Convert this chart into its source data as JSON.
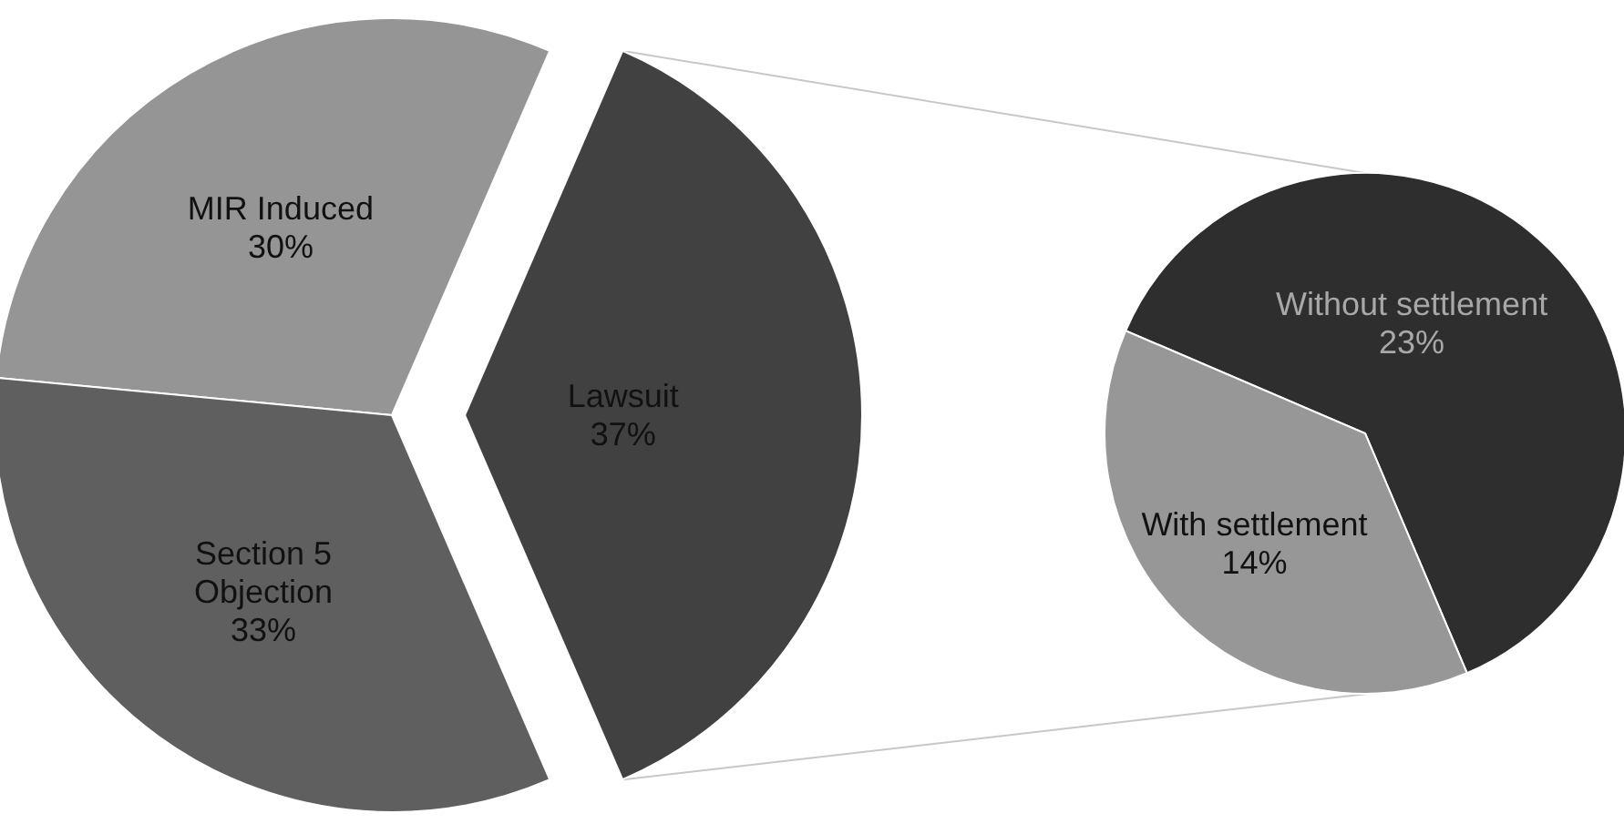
{
  "chart_data": [
    {
      "type": "pie",
      "categories": [
        "MIR Induced",
        "Section 5 Objection",
        "Lawsuit"
      ],
      "values": [
        30,
        33,
        37
      ],
      "value_labels": [
        "30%",
        "33%",
        "37%"
      ],
      "colors": [
        "#959595",
        "#5f5f5f",
        "#414141"
      ],
      "legend": false
    },
    {
      "type": "pie",
      "categories": [
        "Without settlement",
        "With settlement"
      ],
      "values": [
        23,
        14
      ],
      "value_labels": [
        "23%",
        "14%"
      ],
      "colors": [
        "#2e2e2e",
        "#979797"
      ],
      "legend": false
    }
  ]
}
